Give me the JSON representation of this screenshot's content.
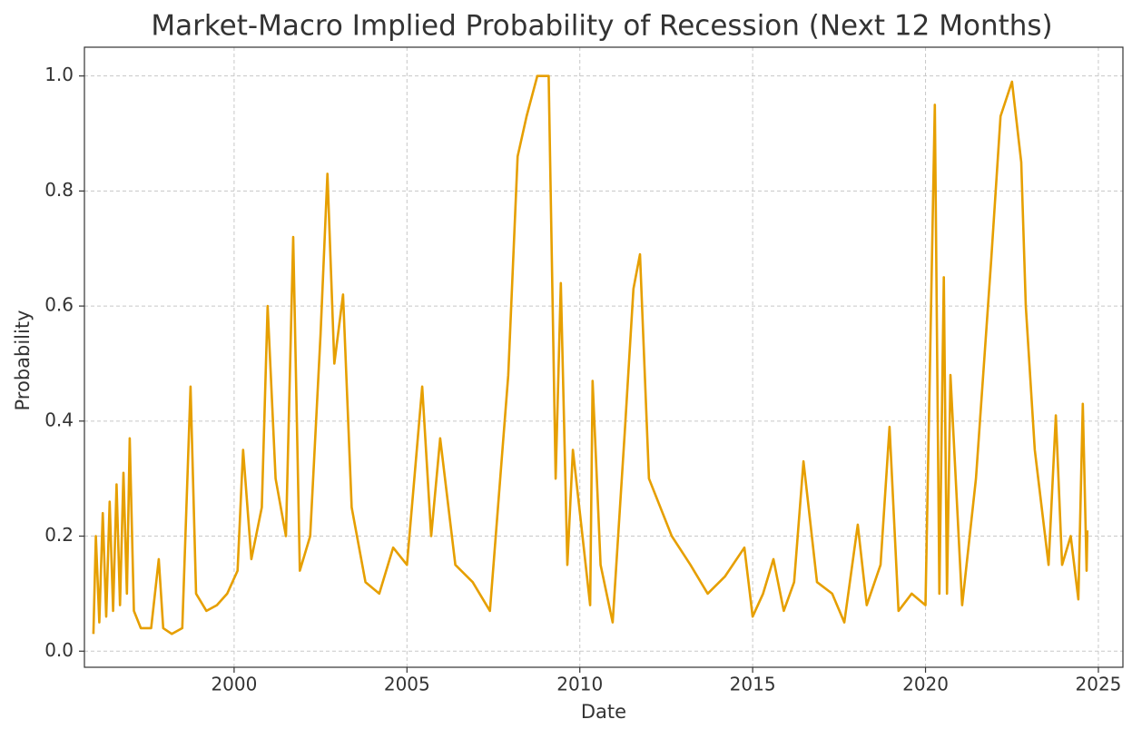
{
  "chart_data": {
    "type": "line",
    "title": "Market-Macro Implied Probability of Recession (Next 12 Months)",
    "x_label": "Date",
    "y_label": "Probability",
    "xlim": [
      1995.67,
      2025.71
    ],
    "ylim": [
      -0.028,
      1.05
    ],
    "xticks": [
      2000,
      2005,
      2010,
      2015,
      2020,
      2025
    ],
    "yticks": [
      {
        "value": 0,
        "label": "0.0"
      },
      0.2,
      0.4,
      0.6,
      0.8,
      {
        "value": 1,
        "label": "1.0"
      }
    ],
    "grid": true,
    "series": [
      {
        "name": "Probability",
        "color": "#e69f00",
        "x": [
          1995.93,
          1996.0,
          1996.1,
          1996.2,
          1996.3,
          1996.4,
          1996.5,
          1996.6,
          1996.7,
          1996.8,
          1996.9,
          1996.98,
          1997.1,
          1997.3,
          1997.6,
          1997.82,
          1997.95,
          1998.2,
          1998.5,
          1998.74,
          1998.9,
          1999.2,
          1999.5,
          1999.8,
          2000.1,
          2000.26,
          2000.5,
          2000.8,
          2000.97,
          2001.2,
          2001.5,
          2001.71,
          2001.9,
          2002.2,
          2002.5,
          2002.7,
          2002.9,
          2003.15,
          2003.4,
          2003.8,
          2004.2,
          2004.6,
          2005.0,
          2005.44,
          2005.7,
          2005.96,
          2006.4,
          2006.9,
          2007.4,
          2007.93,
          2008.2,
          2008.46,
          2008.77,
          2009.1,
          2009.3,
          2009.45,
          2009.64,
          2009.8,
          2010.3,
          2010.37,
          2010.6,
          2010.95,
          2011.3,
          2011.55,
          2011.74,
          2012.0,
          2012.66,
          2013.2,
          2013.7,
          2014.2,
          2014.76,
          2015.0,
          2015.3,
          2015.6,
          2015.9,
          2016.2,
          2016.47,
          2016.86,
          2017.3,
          2017.65,
          2018.04,
          2018.3,
          2018.7,
          2018.96,
          2019.22,
          2019.6,
          2020.0,
          2020.27,
          2020.4,
          2020.53,
          2020.62,
          2020.72,
          2021.06,
          2021.46,
          2021.9,
          2022.17,
          2022.5,
          2022.77,
          2022.9,
          2023.16,
          2023.56,
          2023.77,
          2023.95,
          2024.2,
          2024.42,
          2024.55,
          2024.66,
          2024.68
        ],
        "values": [
          0.03,
          0.2,
          0.05,
          0.24,
          0.06,
          0.26,
          0.07,
          0.29,
          0.08,
          0.31,
          0.1,
          0.37,
          0.07,
          0.04,
          0.04,
          0.16,
          0.04,
          0.03,
          0.04,
          0.46,
          0.1,
          0.07,
          0.08,
          0.1,
          0.14,
          0.35,
          0.16,
          0.25,
          0.6,
          0.3,
          0.2,
          0.72,
          0.14,
          0.2,
          0.55,
          0.83,
          0.5,
          0.62,
          0.25,
          0.12,
          0.1,
          0.18,
          0.15,
          0.46,
          0.2,
          0.37,
          0.15,
          0.12,
          0.07,
          0.48,
          0.86,
          0.93,
          1.0,
          1.0,
          0.3,
          0.64,
          0.15,
          0.35,
          0.08,
          0.47,
          0.15,
          0.05,
          0.38,
          0.63,
          0.69,
          0.3,
          0.2,
          0.15,
          0.1,
          0.13,
          0.18,
          0.06,
          0.1,
          0.16,
          0.07,
          0.12,
          0.33,
          0.12,
          0.1,
          0.05,
          0.22,
          0.08,
          0.15,
          0.39,
          0.07,
          0.1,
          0.08,
          0.95,
          0.1,
          0.65,
          0.1,
          0.48,
          0.08,
          0.3,
          0.68,
          0.93,
          0.99,
          0.85,
          0.6,
          0.35,
          0.15,
          0.41,
          0.15,
          0.2,
          0.09,
          0.43,
          0.14,
          0.21
        ]
      }
    ]
  }
}
